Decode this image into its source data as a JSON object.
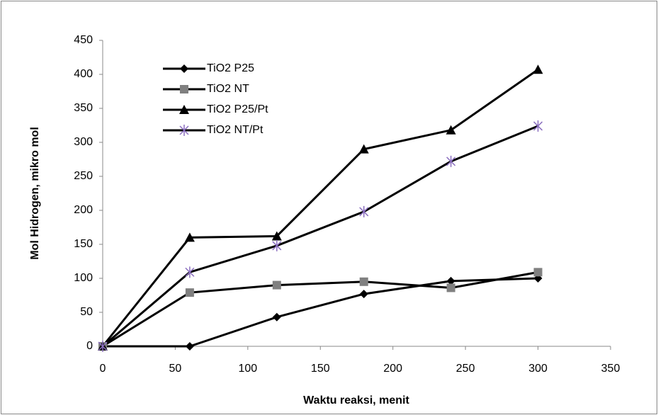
{
  "chart_data": {
    "type": "line",
    "x_label": "Waktu reaksi, menit",
    "y_label": "Mol Hidrogen, mikro mol",
    "x": [
      0,
      60,
      120,
      180,
      240,
      300
    ],
    "series": [
      {
        "name": "TiO2 P25",
        "color": "#000000",
        "marker": "diamond",
        "marker_color": "#000000",
        "values": [
          0,
          0,
          43,
          77,
          96,
          100
        ]
      },
      {
        "name": "TiO2 NT",
        "color": "#000000",
        "marker": "square",
        "marker_color": "#808080",
        "values": [
          0,
          79,
          90,
          95,
          86,
          109
        ]
      },
      {
        "name": "TiO2 P25/Pt",
        "color": "#000000",
        "marker": "triangle",
        "marker_color": "#000000",
        "values": [
          0,
          160,
          162,
          290,
          318,
          407
        ]
      },
      {
        "name": "TiO2 NT/Pt",
        "color": "#000000",
        "marker": "star",
        "marker_color": "#8b6fbf",
        "values": [
          0,
          109,
          148,
          198,
          272,
          324
        ]
      }
    ],
    "xlim": [
      0,
      350
    ],
    "xticks": [
      0,
      50,
      100,
      150,
      200,
      250,
      300,
      350
    ],
    "ylim": [
      0,
      450
    ],
    "yticks": [
      0,
      50,
      100,
      150,
      200,
      250,
      300,
      350,
      400,
      450
    ],
    "grid": false,
    "legend": "upper left"
  }
}
